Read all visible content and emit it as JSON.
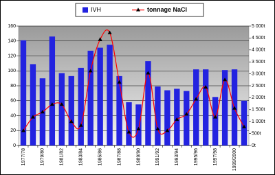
{
  "chart_data": {
    "type": "bar",
    "categories": [
      "1977/78",
      null,
      "1979/80",
      null,
      "1981/82",
      null,
      "1983/84",
      null,
      "1985/86",
      null,
      "1987/88",
      null,
      "1989/90",
      null,
      "1991/92",
      null,
      "1993/94",
      null,
      "1995/96",
      null,
      "1997/98",
      null,
      "1999/2000",
      null
    ],
    "series": [
      {
        "name": "IVH",
        "type": "bar",
        "color": "#2323e0",
        "values": [
          141,
          109,
          90,
          146,
          97,
          93,
          104,
          127,
          131,
          135,
          93,
          58,
          55,
          113,
          79,
          74,
          76,
          73,
          102,
          102,
          65,
          101,
          102,
          60
        ]
      },
      {
        "name": "tonnage NaCl",
        "type": "line",
        "axis": "y2",
        "color": "#ff0000",
        "marker_color": "#000000",
        "values": [
          620,
          1190,
          1400,
          1720,
          1720,
          1000,
          840,
          3120,
          4440,
          4720,
          2650,
          560,
          690,
          3030,
          690,
          620,
          1090,
          1310,
          1940,
          2440,
          1190,
          2750,
          1560,
          780
        ]
      }
    ],
    "ylim": [
      0,
      160
    ],
    "yticks": [
      0,
      20,
      40,
      60,
      80,
      100,
      120,
      140,
      160
    ],
    "y2lim": [
      0,
      5000
    ],
    "y2ticks": [
      {
        "value": 0,
        "label": "0t"
      },
      {
        "value": 500,
        "label": "500t"
      },
      {
        "value": 1000,
        "label": "1 000t"
      },
      {
        "value": 1500,
        "label": "1 500t"
      },
      {
        "value": 2000,
        "label": "2 000t"
      },
      {
        "value": 2500,
        "label": "2 500t"
      },
      {
        "value": 3000,
        "label": "3 000t"
      },
      {
        "value": 3500,
        "label": "3 500t"
      },
      {
        "value": 4000,
        "label": "4 000t"
      },
      {
        "value": 4500,
        "label": "4 500t"
      },
      {
        "value": 5000,
        "label": "5 000t"
      }
    ],
    "grid": true,
    "legend": "top"
  }
}
